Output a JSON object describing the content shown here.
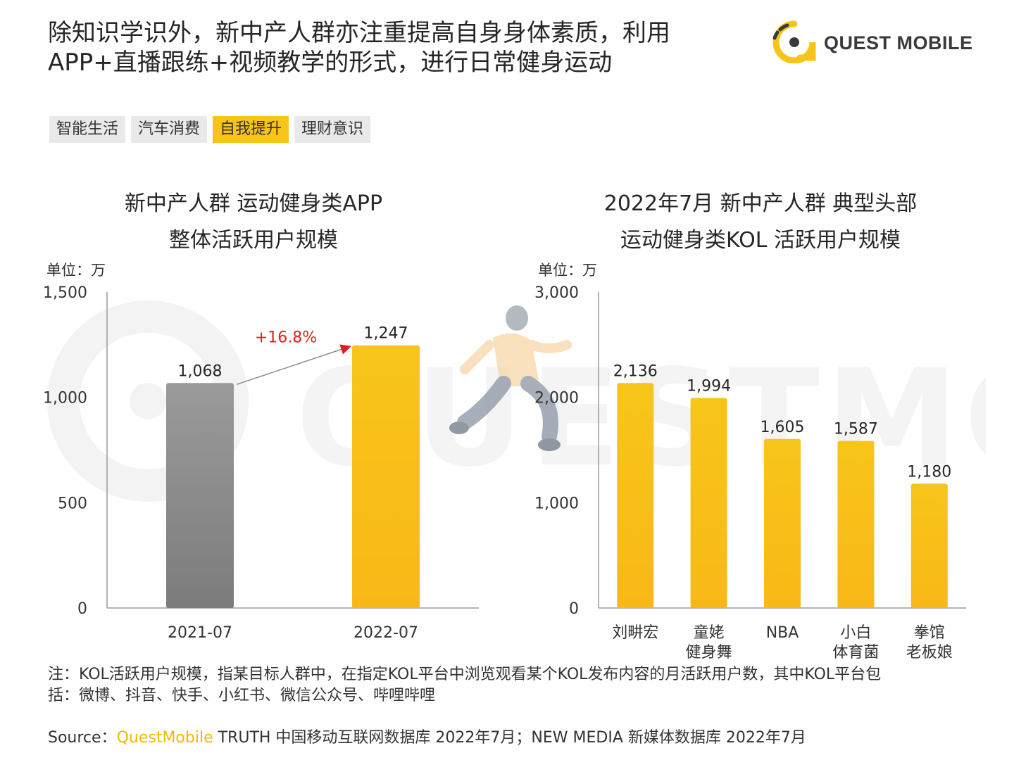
{
  "header": {
    "headline_line1": "除知识学识外，新中产人群亦注重提高自身身体素质，利用",
    "headline_line2": "APP+直播跟练+视频教学的形式，进行日常健身运动",
    "logo_text": "QUEST MOBILE"
  },
  "tabs": [
    {
      "label": "智能生活",
      "active": false
    },
    {
      "label": "汽车消费",
      "active": false
    },
    {
      "label": "自我提升",
      "active": true
    },
    {
      "label": "理财意识",
      "active": false
    }
  ],
  "colors": {
    "accent_yellow": "#F7C51A",
    "gray_bar": "#8C8C8C",
    "growth_red": "#E02020"
  },
  "chart_data": [
    {
      "type": "bar",
      "title_line1": "新中产人群 运动健身类APP",
      "title_line2": "整体活跃用户规模",
      "unit_label": "单位：万",
      "categories": [
        "2021-07",
        "2022-07"
      ],
      "values": [
        1068,
        1247
      ],
      "value_labels": [
        "1,068",
        "1,247"
      ],
      "bar_colors": [
        "#8C8C8C",
        "#F7C51A"
      ],
      "ylim": [
        0,
        1500
      ],
      "yticks": [
        0,
        500,
        1000,
        1500
      ],
      "ytick_labels": [
        "0",
        "500",
        "1,000",
        "1,500"
      ],
      "annotation": "+16.8%"
    },
    {
      "type": "bar",
      "title_line1": "2022年7月 新中产人群 典型头部",
      "title_line2": "运动健身类KOL 活跃用户规模",
      "unit_label": "单位：万",
      "categories": [
        "刘畊宏",
        "童姥\n健身舞",
        "NBA",
        "小白\n体育菌",
        "拳馆\n老板娘"
      ],
      "values": [
        2136,
        1994,
        1605,
        1587,
        1180
      ],
      "value_labels": [
        "2,136",
        "1,994",
        "1,605",
        "1,587",
        "1,180"
      ],
      "ylim": [
        0,
        3000
      ],
      "yticks": [
        0,
        1000,
        2000,
        3000
      ],
      "ytick_labels": [
        "0",
        "1,000",
        "2,000",
        "3,000"
      ]
    }
  ],
  "note": {
    "line1": "注：KOL活跃用户规模，指某目标人群中，在指定KOL平台中浏览观看某个KOL发布内容的月活跃用户数，其中KOL平台包",
    "line2": "括：微博、抖音、快手、小红书、微信公众号、哔哩哔哩"
  },
  "source": {
    "prefix": "Source：",
    "brand": "QuestMobile",
    "rest": " TRUTH 中国移动互联网数据库 2022年7月；NEW MEDIA 新媒体数据库 2022年7月"
  }
}
